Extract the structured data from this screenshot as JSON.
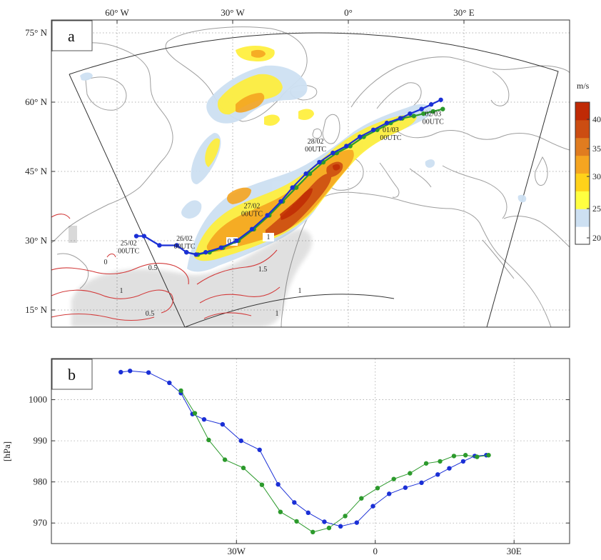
{
  "chart_data": [
    {
      "panel": "a",
      "type": "map",
      "title": "",
      "lon_tick_labels": [
        "60° W",
        "30° W",
        "0°",
        "30° E"
      ],
      "lat_tick_labels": [
        "75° N",
        "60° N",
        "45° N",
        "30° N",
        "15° N"
      ],
      "colorbar": {
        "unit": "m/s",
        "ticks": [
          "40",
          "35",
          "30",
          "25",
          "20"
        ],
        "colors": [
          "#ffffff",
          "#cde0f2",
          "#ffff40",
          "#ffd21a",
          "#f5a521",
          "#e07c20",
          "#cc4d12",
          "#c02a05"
        ]
      },
      "contour_labels": [
        "0.5",
        "1",
        "1.5",
        "1",
        "0.5",
        "1",
        "0",
        "1",
        "0.5"
      ],
      "track_colors": {
        "blue": "#1a2fd6",
        "green": "#2c9a2c"
      },
      "track_blue": [
        {
          "lon": -55,
          "lat": 31
        },
        {
          "lon": -53,
          "lat": 31
        },
        {
          "lon": -49,
          "lat": 29
        },
        {
          "lon": -44.5,
          "lat": 29
        },
        {
          "lon": -42,
          "lat": 27.5
        },
        {
          "lon": -39.5,
          "lat": 27
        },
        {
          "lon": -37,
          "lat": 27.5
        },
        {
          "lon": -33,
          "lat": 28.5
        },
        {
          "lon": -29,
          "lat": 30
        },
        {
          "lon": -25,
          "lat": 32.5
        },
        {
          "lon": -21,
          "lat": 35.5
        },
        {
          "lon": -17.5,
          "lat": 38.5
        },
        {
          "lon": -14.5,
          "lat": 41.5
        },
        {
          "lon": -11,
          "lat": 44.5
        },
        {
          "lon": -7.5,
          "lat": 47
        },
        {
          "lon": -4,
          "lat": 49
        },
        {
          "lon": -0.5,
          "lat": 50.5
        },
        {
          "lon": 3,
          "lat": 52.5
        },
        {
          "lon": 6.5,
          "lat": 54
        },
        {
          "lon": 10,
          "lat": 55.5
        },
        {
          "lon": 13.5,
          "lat": 56.5
        },
        {
          "lon": 16,
          "lat": 57.5
        },
        {
          "lon": 19,
          "lat": 58.5
        },
        {
          "lon": 21.5,
          "lat": 59.5
        },
        {
          "lon": 24,
          "lat": 60.5
        }
      ],
      "track_green": [
        {
          "lon": -42,
          "lat": 27.5
        },
        {
          "lon": -39,
          "lat": 27
        },
        {
          "lon": -36,
          "lat": 27.5
        },
        {
          "lon": -32.5,
          "lat": 28.5
        },
        {
          "lon": -28.5,
          "lat": 30
        },
        {
          "lon": -24.5,
          "lat": 32.5
        },
        {
          "lon": -20.5,
          "lat": 35.5
        },
        {
          "lon": -17,
          "lat": 38.5
        },
        {
          "lon": -13.5,
          "lat": 41.5
        },
        {
          "lon": -10,
          "lat": 44.5
        },
        {
          "lon": -6.5,
          "lat": 47
        },
        {
          "lon": -3,
          "lat": 49
        },
        {
          "lon": 0.5,
          "lat": 50.5
        },
        {
          "lon": 4,
          "lat": 52.5
        },
        {
          "lon": 7.5,
          "lat": 54
        },
        {
          "lon": 11,
          "lat": 55.5
        },
        {
          "lon": 14,
          "lat": 56.5
        },
        {
          "lon": 17,
          "lat": 57
        },
        {
          "lon": 19.5,
          "lat": 57.5
        },
        {
          "lon": 22,
          "lat": 58
        },
        {
          "lon": 24.5,
          "lat": 58.5
        }
      ],
      "annotations": [
        {
          "text": [
            "25/02",
            "00UTC"
          ],
          "lon": -57,
          "lat": 29
        },
        {
          "text": [
            "26/02",
            "00UTC"
          ],
          "lon": -42.5,
          "lat": 30
        },
        {
          "text": [
            "27/02",
            "00UTC"
          ],
          "lon": -25,
          "lat": 37
        },
        {
          "text": [
            "28/02",
            "00UTC"
          ],
          "lon": -8.5,
          "lat": 51
        },
        {
          "text": [
            "01/03",
            "00UTC"
          ],
          "lon": 11,
          "lat": 53.5
        },
        {
          "text": [
            "02/03",
            "00UTC"
          ],
          "lon": 22,
          "lat": 57
        }
      ]
    },
    {
      "panel": "b",
      "type": "line",
      "title": "",
      "xlabel": "",
      "ylabel": "[hPa]",
      "x_tick_labels": [
        "30W",
        "0",
        "30E"
      ],
      "y_ticks": [
        970,
        980,
        990,
        1000
      ],
      "xlim": [
        -70,
        42
      ],
      "ylim": [
        965,
        1010
      ],
      "grid": true,
      "series": [
        {
          "color": "#1a2fd6",
          "x": [
            -55,
            -53,
            -49,
            -44.5,
            -42,
            -39.5,
            -37,
            -33,
            -29,
            -25,
            -21,
            -17.5,
            -14.5,
            -11,
            -7.5,
            -4,
            -0.5,
            3,
            6.5,
            10,
            13.5,
            16,
            19,
            21.5,
            24
          ],
          "y": [
            1006.7,
            1007.0,
            1006.6,
            1004.1,
            1001.6,
            996.5,
            995.2,
            994.0,
            990.0,
            987.8,
            979.4,
            975.0,
            972.5,
            970.3,
            969.2,
            970.1,
            974.1,
            977.1,
            978.6,
            979.8,
            981.8,
            983.3,
            985.0,
            986.3,
            986.5
          ]
        },
        {
          "color": "#2c9a2c",
          "x": [
            -42,
            -39,
            -36,
            -32.5,
            -28.5,
            -24.5,
            -20.5,
            -17,
            -13.5,
            -10,
            -6.5,
            -3,
            0.5,
            4,
            7.5,
            11,
            14,
            17,
            19.5,
            22,
            24.5
          ],
          "y": [
            1002.2,
            996.7,
            990.2,
            985.4,
            983.4,
            979.3,
            972.7,
            970.4,
            967.8,
            968.8,
            971.7,
            976.0,
            978.5,
            980.7,
            982.1,
            984.5,
            985.0,
            986.3,
            986.5,
            986.1,
            986.5
          ]
        }
      ]
    }
  ]
}
